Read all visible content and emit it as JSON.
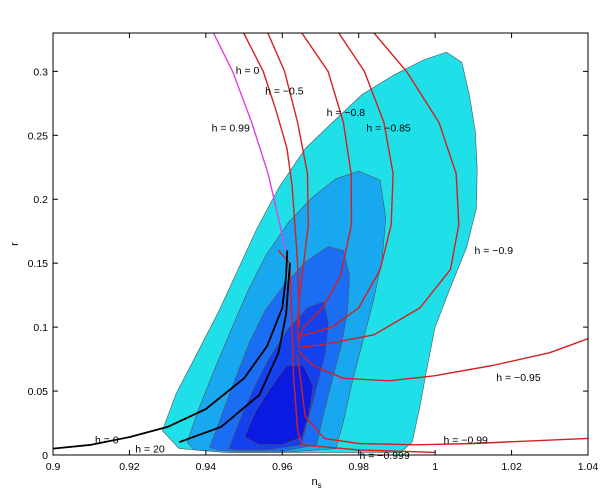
{
  "chart_data": {
    "type": "contour",
    "xlabel": "n",
    "xlabel_sub": "s",
    "ylabel": "r",
    "xlim": [
      0.9,
      1.04
    ],
    "ylim": [
      0,
      0.33
    ],
    "grid": false,
    "x_ticks": [
      0.9,
      0.92,
      0.94,
      0.96,
      0.98,
      1,
      1.02,
      1.04
    ],
    "x_tick_labels": [
      "0.9",
      "0.92",
      "0.94",
      "0.96",
      "0.98",
      "1",
      "1.02",
      "1.04"
    ],
    "y_ticks": [
      0,
      0.05,
      0.1,
      0.15,
      0.2,
      0.25,
      0.3
    ],
    "y_tick_labels": [
      "0",
      "0.05",
      "0.1",
      "0.15",
      "0.2",
      "0.25",
      "0.3"
    ],
    "colors": {
      "contour_outer": "#1fe0e8",
      "contour_2": "#18a8f0",
      "contour_3": "#1a6ef4",
      "contour_4": "#1440ee",
      "contour_inner": "#0b1ae0",
      "contour_edge": "#555555",
      "curve_red": "#d42020",
      "curve_magenta": "#e040e0",
      "curve_black": "#000000"
    },
    "contours": [
      {
        "level": 1,
        "fill": "contour_outer",
        "points": [
          [
            0.9286,
            0.019
          ],
          [
            0.9322,
            0.048
          ],
          [
            0.9378,
            0.08
          ],
          [
            0.9433,
            0.112
          ],
          [
            0.9481,
            0.143
          ],
          [
            0.9532,
            0.176
          ],
          [
            0.9591,
            0.209
          ],
          [
            0.9661,
            0.24
          ],
          [
            0.9738,
            0.262
          ],
          [
            0.9809,
            0.282
          ],
          [
            0.9891,
            0.297
          ],
          [
            0.997,
            0.309
          ],
          [
            1.003,
            0.315
          ],
          [
            1.007,
            0.307
          ],
          [
            1.009,
            0.281
          ],
          [
            1.0105,
            0.253
          ],
          [
            1.011,
            0.224
          ],
          [
            1.0108,
            0.193
          ],
          [
            1.0082,
            0.162
          ],
          [
            1.004,
            0.131
          ],
          [
            1.0,
            0.1
          ],
          [
            0.998,
            0.07
          ],
          [
            0.996,
            0.038
          ],
          [
            0.994,
            0.01
          ],
          [
            0.991,
            0.002
          ],
          [
            0.976,
            0.002
          ],
          [
            0.96,
            0.002
          ],
          [
            0.946,
            0.002
          ],
          [
            0.933,
            0.005
          ]
        ]
      },
      {
        "level": 2,
        "fill": "contour_2",
        "points": [
          [
            0.9351,
            0.01
          ],
          [
            0.938,
            0.035
          ],
          [
            0.942,
            0.065
          ],
          [
            0.9466,
            0.098
          ],
          [
            0.9511,
            0.129
          ],
          [
            0.9557,
            0.156
          ],
          [
            0.9614,
            0.181
          ],
          [
            0.9677,
            0.201
          ],
          [
            0.974,
            0.216
          ],
          [
            0.98,
            0.222
          ],
          [
            0.9856,
            0.215
          ],
          [
            0.9871,
            0.185
          ],
          [
            0.9861,
            0.152
          ],
          [
            0.9838,
            0.12
          ],
          [
            0.981,
            0.088
          ],
          [
            0.9783,
            0.057
          ],
          [
            0.976,
            0.026
          ],
          [
            0.974,
            0.005
          ],
          [
            0.96,
            0.002
          ],
          [
            0.945,
            0.002
          ],
          [
            0.937,
            0.004
          ]
        ]
      },
      {
        "level": 3,
        "fill": "contour_3",
        "points": [
          [
            0.941,
            0.006
          ],
          [
            0.944,
            0.03
          ],
          [
            0.9475,
            0.058
          ],
          [
            0.9514,
            0.088
          ],
          [
            0.9555,
            0.113
          ],
          [
            0.9605,
            0.133
          ],
          [
            0.9661,
            0.151
          ],
          [
            0.972,
            0.163
          ],
          [
            0.976,
            0.16
          ],
          [
            0.9776,
            0.14
          ],
          [
            0.9771,
            0.113
          ],
          [
            0.9754,
            0.085
          ],
          [
            0.973,
            0.058
          ],
          [
            0.9707,
            0.031
          ],
          [
            0.969,
            0.008
          ],
          [
            0.96,
            0.003
          ],
          [
            0.948,
            0.003
          ],
          [
            0.943,
            0.004
          ]
        ]
      },
      {
        "level": 4,
        "fill": "contour_4",
        "points": [
          [
            0.946,
            0.005
          ],
          [
            0.949,
            0.028
          ],
          [
            0.9525,
            0.052
          ],
          [
            0.9566,
            0.076
          ],
          [
            0.9614,
            0.098
          ],
          [
            0.9665,
            0.115
          ],
          [
            0.9708,
            0.12
          ],
          [
            0.9721,
            0.103
          ],
          [
            0.9713,
            0.08
          ],
          [
            0.9692,
            0.055
          ],
          [
            0.967,
            0.03
          ],
          [
            0.965,
            0.008
          ],
          [
            0.956,
            0.004
          ],
          [
            0.948,
            0.004
          ]
        ]
      },
      {
        "level": 5,
        "fill": "contour_inner",
        "points": [
          [
            0.95,
            0.014
          ],
          [
            0.953,
            0.034
          ],
          [
            0.957,
            0.053
          ],
          [
            0.9612,
            0.07
          ],
          [
            0.9655,
            0.07
          ],
          [
            0.9681,
            0.054
          ],
          [
            0.967,
            0.032
          ],
          [
            0.9652,
            0.014
          ],
          [
            0.96,
            0.008
          ],
          [
            0.954,
            0.008
          ]
        ]
      }
    ],
    "curves": [
      {
        "color": "curve_red",
        "points": [
          [
            0.9499,
            0.33
          ],
          [
            0.955,
            0.3
          ],
          [
            0.9583,
            0.27
          ],
          [
            0.9612,
            0.24
          ],
          [
            0.9626,
            0.21
          ],
          [
            0.9633,
            0.18
          ],
          [
            0.964,
            0.15
          ],
          [
            0.9643,
            0.12
          ],
          [
            0.9644,
            0.1
          ]
        ]
      },
      {
        "color": "curve_red",
        "points": [
          [
            0.9562,
            0.33
          ],
          [
            0.9606,
            0.3
          ],
          [
            0.964,
            0.26
          ],
          [
            0.9666,
            0.22
          ],
          [
            0.9668,
            0.18
          ],
          [
            0.9656,
            0.15
          ],
          [
            0.9643,
            0.12
          ],
          [
            0.964,
            0.1
          ],
          [
            0.9644,
            0.085
          ]
        ]
      },
      {
        "color": "curve_red",
        "points": [
          [
            0.9651,
            0.33
          ],
          [
            0.972,
            0.3
          ],
          [
            0.976,
            0.26
          ],
          [
            0.978,
            0.22
          ],
          [
            0.9781,
            0.18
          ],
          [
            0.9752,
            0.14
          ],
          [
            0.9706,
            0.115
          ],
          [
            0.9656,
            0.1
          ],
          [
            0.964,
            0.09
          ]
        ]
      },
      {
        "color": "curve_red",
        "points": [
          [
            0.9748,
            0.33
          ],
          [
            0.9815,
            0.3
          ],
          [
            0.9866,
            0.26
          ],
          [
            0.989,
            0.22
          ],
          [
            0.9885,
            0.18
          ],
          [
            0.9856,
            0.145
          ],
          [
            0.98,
            0.115
          ],
          [
            0.973,
            0.1
          ],
          [
            0.966,
            0.094
          ],
          [
            0.964,
            0.092
          ]
        ]
      },
      {
        "color": "curve_red",
        "points": [
          [
            0.984,
            0.33
          ],
          [
            0.9925,
            0.3
          ],
          [
            1.001,
            0.26
          ],
          [
            1.0055,
            0.22
          ],
          [
            1.0062,
            0.18
          ],
          [
            1.004,
            0.145
          ],
          [
            0.996,
            0.115
          ],
          [
            0.984,
            0.094
          ],
          [
            0.97,
            0.086
          ],
          [
            0.964,
            0.084
          ]
        ]
      },
      {
        "color": "curve_red",
        "points": [
          [
            0.964,
            0.082
          ],
          [
            0.968,
            0.07
          ],
          [
            0.976,
            0.06
          ],
          [
            0.988,
            0.058
          ],
          [
            1.0,
            0.062
          ],
          [
            1.015,
            0.07
          ],
          [
            1.03,
            0.08
          ],
          [
            1.04,
            0.091
          ]
        ]
      },
      {
        "color": "curve_red",
        "points": [
          [
            0.964,
            0.078
          ],
          [
            0.966,
            0.03
          ],
          [
            0.971,
            0.013
          ],
          [
            0.98,
            0.009
          ],
          [
            0.995,
            0.008
          ],
          [
            1.01,
            0.009
          ],
          [
            1.025,
            0.011
          ],
          [
            1.04,
            0.013
          ]
        ]
      },
      {
        "color": "curve_red",
        "points": [
          [
            0.959,
            0.16
          ],
          [
            0.962,
            0.15
          ],
          [
            0.963,
            0.06
          ],
          [
            0.964,
            0.02
          ],
          [
            0.965,
            0.008
          ],
          [
            0.98,
            0.004
          ],
          [
            1.0,
            0.002
          ]
        ]
      },
      {
        "color": "curve_magenta",
        "points": [
          [
            0.942,
            0.33
          ],
          [
            0.947,
            0.3
          ],
          [
            0.952,
            0.26
          ],
          [
            0.9563,
            0.22
          ],
          [
            0.9594,
            0.18
          ],
          [
            0.9608,
            0.16
          ]
        ]
      },
      {
        "color": "curve_black",
        "points": [
          [
            0.9,
            0.005
          ],
          [
            0.91,
            0.008
          ],
          [
            0.92,
            0.014
          ],
          [
            0.93,
            0.022
          ],
          [
            0.94,
            0.036
          ],
          [
            0.95,
            0.06
          ],
          [
            0.956,
            0.085
          ],
          [
            0.96,
            0.115
          ],
          [
            0.961,
            0.14
          ],
          [
            0.9613,
            0.16
          ]
        ]
      },
      {
        "color": "curve_black",
        "points": [
          [
            0.933,
            0.01
          ],
          [
            0.944,
            0.022
          ],
          [
            0.954,
            0.047
          ],
          [
            0.959,
            0.08
          ],
          [
            0.961,
            0.11
          ],
          [
            0.962,
            0.15
          ]
        ]
      }
    ],
    "annotations": [
      {
        "text": "h = 0",
        "x": 0.9478,
        "y": 0.298
      },
      {
        "text": "h = −0.5",
        "x": 0.9555,
        "y": 0.282
      },
      {
        "text": "h = 0.99",
        "x": 0.9415,
        "y": 0.253
      },
      {
        "text": "h = −0.8",
        "x": 0.9716,
        "y": 0.265
      },
      {
        "text": "h = −0.85",
        "x": 0.982,
        "y": 0.253
      },
      {
        "text": "h = −0.9",
        "x": 1.0103,
        "y": 0.157
      },
      {
        "text": "h = −0.95",
        "x": 1.016,
        "y": 0.058
      },
      {
        "text": "h = −0.99",
        "x": 1.0022,
        "y": 0.009
      },
      {
        "text": "h = −0.999",
        "x": 0.9802,
        "y": -0.003
      },
      {
        "text": "h = 0",
        "x": 0.911,
        "y": 0.009
      },
      {
        "text": "h = 20",
        "x": 0.9215,
        "y": 0.002
      }
    ]
  }
}
